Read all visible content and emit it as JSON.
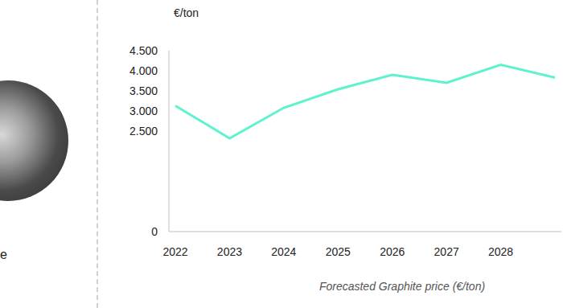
{
  "chart_data": {
    "type": "line",
    "ylabel": "€/ton",
    "caption": "Forecasted Graphite price (€/ton)",
    "side_label": "e",
    "categories": [
      "2022",
      "2023",
      "2024",
      "2025",
      "2026",
      "2027",
      "2028",
      null
    ],
    "values": [
      3130,
      2320,
      3080,
      3540,
      3900,
      3700,
      4150,
      3830
    ],
    "color": "#5ef2cf",
    "ylim": [
      0,
      4500
    ],
    "yticks": [
      0,
      {
        "value": 2500,
        "label": "2.500"
      },
      {
        "value": 3000,
        "label": "3.000"
      },
      {
        "value": 3500,
        "label": "3.500"
      },
      {
        "value": 4000,
        "label": "4.000"
      },
      {
        "value": 4500,
        "label": "4.500"
      }
    ],
    "grid": false
  }
}
